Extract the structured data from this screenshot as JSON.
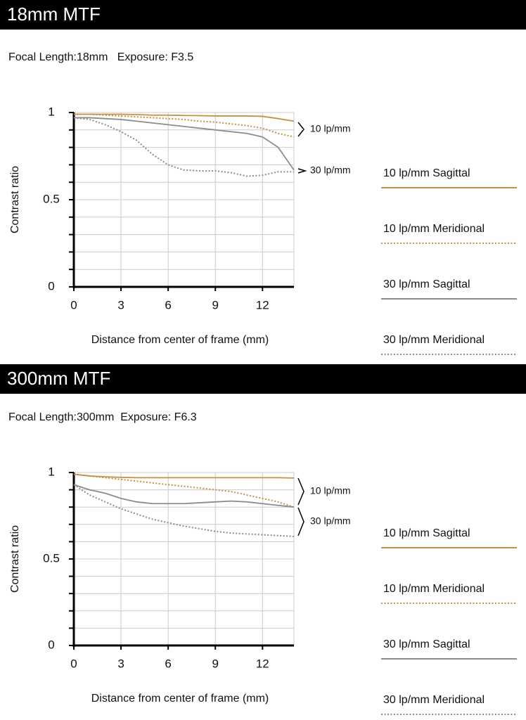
{
  "chart_data": [
    {
      "type": "line",
      "title": "18mm MTF",
      "subtitle": "Focal Length:18mm   Exposure: F3.5",
      "xlabel": "Distance from center of frame (mm)",
      "ylabel": "Contrast ratio",
      "x": [
        0,
        1,
        2,
        3,
        4,
        5,
        6,
        7,
        8,
        9,
        10,
        11,
        12,
        13,
        14
      ],
      "xlim": [
        0,
        14
      ],
      "xticks": [
        0,
        3,
        6,
        9,
        12
      ],
      "ylim": [
        0,
        1
      ],
      "yticks": [
        0,
        0.5,
        1
      ],
      "ygrid": [
        0.1,
        0.2,
        0.3,
        0.4,
        0.5,
        0.6,
        0.7,
        0.8,
        0.9,
        1
      ],
      "grid": true,
      "annotations": [
        "10 lp/mm",
        "30 lp/mm"
      ],
      "series": [
        {
          "name": "10 lp/mm Sagittal",
          "color": "#c8903e",
          "dotted": false,
          "values": [
            0.99,
            0.99,
            0.99,
            0.99,
            0.988,
            0.985,
            0.985,
            0.983,
            0.982,
            0.98,
            0.98,
            0.98,
            0.978,
            0.965,
            0.95
          ]
        },
        {
          "name": "10 lp/mm Meridional",
          "color": "#c8903e",
          "dotted": true,
          "values": [
            0.99,
            0.99,
            0.985,
            0.98,
            0.975,
            0.97,
            0.965,
            0.96,
            0.95,
            0.945,
            0.935,
            0.925,
            0.91,
            0.88,
            0.86
          ]
        },
        {
          "name": "30 lp/mm Sagittal",
          "color": "#8c8c8c",
          "dotted": false,
          "values": [
            0.97,
            0.97,
            0.965,
            0.96,
            0.95,
            0.94,
            0.93,
            0.92,
            0.91,
            0.9,
            0.89,
            0.88,
            0.86,
            0.8,
            0.67
          ]
        },
        {
          "name": "30 lp/mm Meridional",
          "color": "#8c8c8c",
          "dotted": true,
          "values": [
            0.97,
            0.96,
            0.93,
            0.89,
            0.84,
            0.76,
            0.7,
            0.67,
            0.665,
            0.665,
            0.655,
            0.635,
            0.64,
            0.66,
            0.66
          ]
        }
      ]
    },
    {
      "type": "line",
      "title": "300mm MTF",
      "subtitle": "Focal Length:300mm  Exposure: F6.3",
      "xlabel": "Distance from center of frame (mm)",
      "ylabel": "Contrast ratio",
      "x": [
        0,
        1,
        2,
        3,
        4,
        5,
        6,
        7,
        8,
        9,
        10,
        11,
        12,
        13,
        14
      ],
      "xlim": [
        0,
        14
      ],
      "xticks": [
        0,
        3,
        6,
        9,
        12
      ],
      "ylim": [
        0,
        1
      ],
      "yticks": [
        0,
        0.5,
        1
      ],
      "ygrid": [
        0.1,
        0.2,
        0.3,
        0.4,
        0.5,
        0.6,
        0.7,
        0.8,
        0.9,
        1
      ],
      "grid": true,
      "annotations": [
        "10 lp/mm",
        "30 lp/mm"
      ],
      "series": [
        {
          "name": "10 lp/mm Sagittal",
          "color": "#c8903e",
          "dotted": false,
          "values": [
            0.99,
            0.98,
            0.975,
            0.972,
            0.97,
            0.97,
            0.97,
            0.97,
            0.97,
            0.97,
            0.97,
            0.97,
            0.97,
            0.97,
            0.968
          ]
        },
        {
          "name": "10 lp/mm Meridional",
          "color": "#c8903e",
          "dotted": true,
          "values": [
            0.99,
            0.98,
            0.97,
            0.96,
            0.95,
            0.94,
            0.93,
            0.92,
            0.91,
            0.9,
            0.89,
            0.87,
            0.85,
            0.83,
            0.8
          ]
        },
        {
          "name": "30 lp/mm Sagittal",
          "color": "#8c8c8c",
          "dotted": false,
          "values": [
            0.93,
            0.9,
            0.88,
            0.85,
            0.83,
            0.82,
            0.82,
            0.82,
            0.825,
            0.83,
            0.835,
            0.83,
            0.82,
            0.81,
            0.8
          ]
        },
        {
          "name": "30 lp/mm Meridional",
          "color": "#8c8c8c",
          "dotted": true,
          "values": [
            0.93,
            0.87,
            0.83,
            0.79,
            0.76,
            0.73,
            0.71,
            0.69,
            0.675,
            0.66,
            0.65,
            0.645,
            0.64,
            0.635,
            0.63
          ]
        }
      ]
    }
  ]
}
